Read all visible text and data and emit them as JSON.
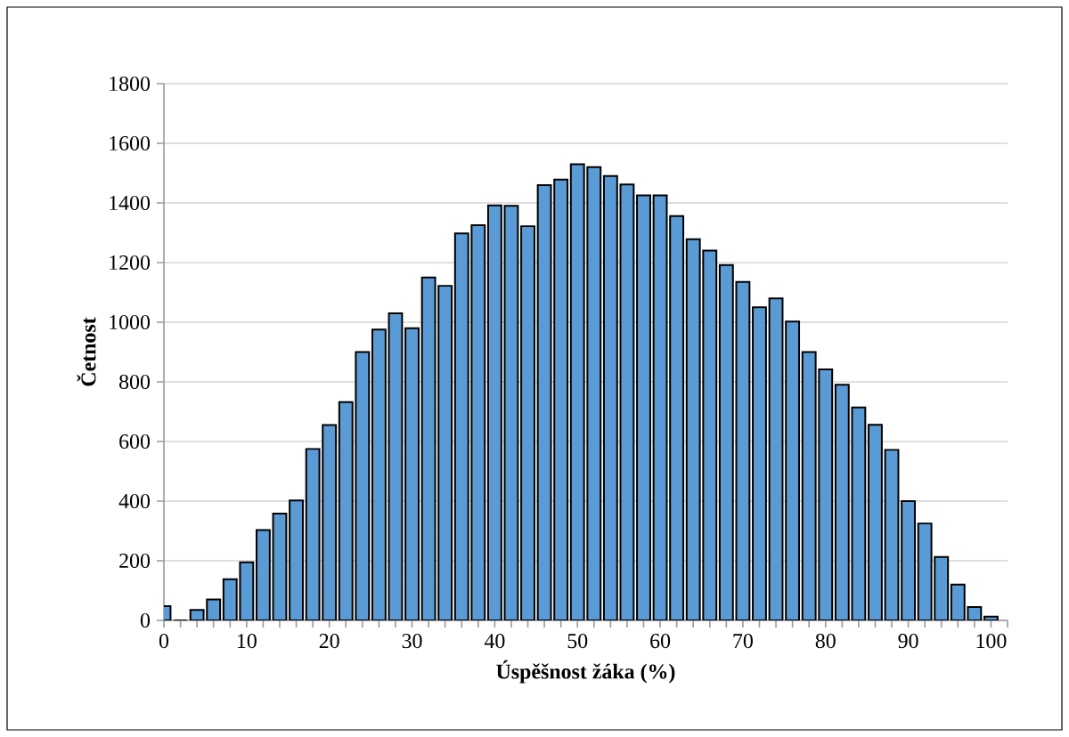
{
  "chart_data": {
    "type": "bar",
    "xlabel": "Úspěšnost žáka (%)",
    "ylabel": "Četnost",
    "x": [
      0,
      2,
      4,
      6,
      8,
      10,
      12,
      14,
      16,
      18,
      20,
      22,
      24,
      26,
      28,
      30,
      32,
      34,
      36,
      38,
      40,
      42,
      44,
      46,
      48,
      50,
      52,
      54,
      56,
      58,
      60,
      62,
      64,
      66,
      68,
      70,
      72,
      74,
      76,
      78,
      80,
      82,
      84,
      86,
      88,
      90,
      92,
      94,
      96,
      98,
      100
    ],
    "values": [
      48,
      0,
      35,
      70,
      138,
      195,
      303,
      358,
      402,
      575,
      655,
      732,
      900,
      975,
      1030,
      980,
      1150,
      1122,
      1298,
      1325,
      1392,
      1390,
      1322,
      1460,
      1478,
      1530,
      1520,
      1490,
      1462,
      1425,
      1425,
      1356,
      1278,
      1240,
      1192,
      1135,
      1050,
      1080,
      1002,
      900,
      842,
      790,
      714,
      656,
      572,
      400,
      325,
      213,
      120,
      45,
      13
    ],
    "color": "#5b9bd5",
    "xlim": [
      0,
      102
    ],
    "ylim": [
      0,
      1800
    ],
    "yticks": [
      0,
      200,
      400,
      600,
      800,
      1000,
      1200,
      1400,
      1600,
      1800
    ],
    "xticks": [
      {
        "value": 0,
        "label": "0"
      },
      {
        "value": 2,
        "label": null
      },
      {
        "value": 4,
        "label": null
      },
      {
        "value": 6,
        "label": null
      },
      {
        "value": 8,
        "label": null
      },
      {
        "value": 10,
        "label": "10"
      },
      {
        "value": 12,
        "label": null
      },
      {
        "value": 14,
        "label": null
      },
      {
        "value": 16,
        "label": null
      },
      {
        "value": 18,
        "label": null
      },
      {
        "value": 20,
        "label": "20"
      },
      {
        "value": 22,
        "label": null
      },
      {
        "value": 24,
        "label": null
      },
      {
        "value": 26,
        "label": null
      },
      {
        "value": 28,
        "label": null
      },
      {
        "value": 30,
        "label": "30"
      },
      {
        "value": 32,
        "label": null
      },
      {
        "value": 34,
        "label": null
      },
      {
        "value": 36,
        "label": null
      },
      {
        "value": 38,
        "label": null
      },
      {
        "value": 40,
        "label": "40"
      },
      {
        "value": 42,
        "label": null
      },
      {
        "value": 44,
        "label": null
      },
      {
        "value": 46,
        "label": null
      },
      {
        "value": 48,
        "label": null
      },
      {
        "value": 50,
        "label": "50"
      },
      {
        "value": 52,
        "label": null
      },
      {
        "value": 54,
        "label": null
      },
      {
        "value": 56,
        "label": null
      },
      {
        "value": 58,
        "label": null
      },
      {
        "value": 60,
        "label": "60"
      },
      {
        "value": 62,
        "label": null
      },
      {
        "value": 64,
        "label": null
      },
      {
        "value": 66,
        "label": null
      },
      {
        "value": 68,
        "label": null
      },
      {
        "value": 70,
        "label": "70"
      },
      {
        "value": 72,
        "label": null
      },
      {
        "value": 74,
        "label": null
      },
      {
        "value": 76,
        "label": null
      },
      {
        "value": 78,
        "label": null
      },
      {
        "value": 80,
        "label": "80"
      },
      {
        "value": 82,
        "label": null
      },
      {
        "value": 84,
        "label": null
      },
      {
        "value": 86,
        "label": null
      },
      {
        "value": 88,
        "label": null
      },
      {
        "value": 90,
        "label": "90"
      },
      {
        "value": 92,
        "label": null
      },
      {
        "value": 94,
        "label": null
      },
      {
        "value": 96,
        "label": null
      },
      {
        "value": 98,
        "label": null
      },
      {
        "value": 100,
        "label": "100"
      },
      {
        "value": 102,
        "label": null
      }
    ],
    "grid": "y"
  }
}
